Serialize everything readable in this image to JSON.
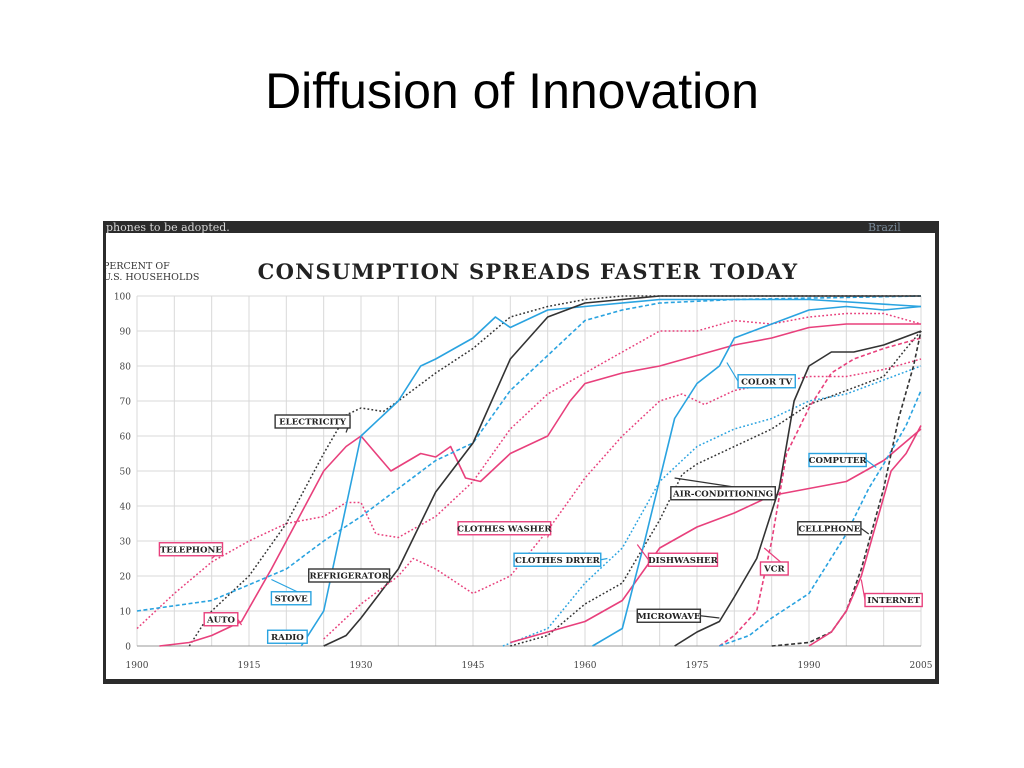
{
  "slide": {
    "title": "Diffusion of Innovation"
  },
  "crop": {
    "text_left": "phones to be adopted.",
    "text_right": "Brazil"
  },
  "chart_data": {
    "type": "line",
    "title": "CONSUMPTION SPREADS FASTER TODAY",
    "ylabel": "PERCENT OF U.S. HOUSEHOLDS",
    "ylabel_lines": [
      "PERCENT OF",
      "U.S. HOUSEHOLDS"
    ],
    "xlabel": "",
    "xlim": [
      1900,
      2005
    ],
    "ylim": [
      0,
      100
    ],
    "x_ticks": [
      1900,
      1915,
      1930,
      1945,
      1960,
      1975,
      1990,
      2005
    ],
    "y_ticks": [
      0,
      10,
      20,
      30,
      40,
      50,
      60,
      70,
      80,
      90,
      100
    ],
    "grid": true,
    "series": [
      {
        "name": "TELEPHONE",
        "color": "#e8407c",
        "style": "dotted",
        "points": [
          [
            1900,
            5
          ],
          [
            1905,
            15
          ],
          [
            1910,
            24
          ],
          [
            1915,
            30
          ],
          [
            1920,
            35
          ],
          [
            1925,
            37
          ],
          [
            1928,
            41
          ],
          [
            1930,
            41
          ],
          [
            1932,
            32
          ],
          [
            1935,
            31
          ],
          [
            1940,
            37
          ],
          [
            1945,
            47
          ],
          [
            1950,
            62
          ],
          [
            1955,
            72
          ],
          [
            1960,
            78
          ],
          [
            1965,
            84
          ],
          [
            1970,
            90
          ],
          [
            1975,
            90
          ],
          [
            1980,
            93
          ],
          [
            1985,
            92
          ],
          [
            1990,
            94
          ],
          [
            1995,
            95
          ],
          [
            2000,
            95
          ],
          [
            2005,
            92
          ]
        ]
      },
      {
        "name": "ELECTRICITY",
        "color": "#333333",
        "style": "dotted",
        "points": [
          [
            1907,
            0
          ],
          [
            1910,
            10
          ],
          [
            1915,
            20
          ],
          [
            1920,
            35
          ],
          [
            1925,
            55
          ],
          [
            1928,
            66
          ],
          [
            1930,
            68
          ],
          [
            1933,
            67
          ],
          [
            1935,
            70
          ],
          [
            1940,
            78
          ],
          [
            1945,
            85
          ],
          [
            1950,
            94
          ],
          [
            1955,
            97
          ],
          [
            1960,
            99
          ],
          [
            1965,
            100
          ],
          [
            1970,
            100
          ],
          [
            2005,
            100
          ]
        ]
      },
      {
        "name": "AUTO",
        "color": "#e8407c",
        "style": "solid",
        "points": [
          [
            1903,
            0
          ],
          [
            1907,
            1
          ],
          [
            1910,
            3
          ],
          [
            1914,
            7
          ],
          [
            1918,
            22
          ],
          [
            1922,
            38
          ],
          [
            1925,
            50
          ],
          [
            1928,
            57
          ],
          [
            1930,
            60
          ],
          [
            1932,
            55
          ],
          [
            1934,
            50
          ],
          [
            1938,
            55
          ],
          [
            1940,
            54
          ],
          [
            1942,
            57
          ],
          [
            1944,
            48
          ],
          [
            1946,
            47
          ],
          [
            1950,
            55
          ],
          [
            1955,
            60
          ],
          [
            1958,
            70
          ],
          [
            1960,
            75
          ],
          [
            1965,
            78
          ],
          [
            1970,
            80
          ],
          [
            1975,
            83
          ],
          [
            1980,
            86
          ],
          [
            1985,
            88
          ],
          [
            1990,
            91
          ],
          [
            1995,
            92
          ],
          [
            2005,
            92
          ]
        ]
      },
      {
        "name": "STOVE",
        "color": "#2aa3e0",
        "style": "dashed",
        "points": [
          [
            1900,
            10
          ],
          [
            1910,
            13
          ],
          [
            1920,
            22
          ],
          [
            1925,
            30
          ],
          [
            1930,
            37
          ],
          [
            1935,
            45
          ],
          [
            1940,
            53
          ],
          [
            1945,
            58
          ],
          [
            1950,
            73
          ],
          [
            1955,
            83
          ],
          [
            1960,
            93
          ],
          [
            1965,
            96
          ],
          [
            1970,
            98
          ],
          [
            1980,
            99
          ],
          [
            2005,
            100
          ]
        ]
      },
      {
        "name": "RADIO",
        "color": "#2aa3e0",
        "style": "solid",
        "points": [
          [
            1922,
            0
          ],
          [
            1925,
            10
          ],
          [
            1928,
            40
          ],
          [
            1930,
            60
          ],
          [
            1935,
            70
          ],
          [
            1938,
            80
          ],
          [
            1940,
            82
          ],
          [
            1945,
            88
          ],
          [
            1948,
            94
          ],
          [
            1950,
            91
          ],
          [
            1955,
            96
          ],
          [
            1960,
            97
          ],
          [
            1970,
            99
          ],
          [
            1980,
            99
          ],
          [
            1990,
            99
          ],
          [
            2005,
            97
          ]
        ]
      },
      {
        "name": "REFRIGERATOR",
        "color": "#333333",
        "style": "solid",
        "points": [
          [
            1925,
            0
          ],
          [
            1928,
            3
          ],
          [
            1930,
            8
          ],
          [
            1935,
            22
          ],
          [
            1940,
            44
          ],
          [
            1945,
            58
          ],
          [
            1950,
            82
          ],
          [
            1955,
            94
          ],
          [
            1960,
            98
          ],
          [
            1965,
            99
          ],
          [
            1970,
            100
          ],
          [
            2005,
            100
          ]
        ]
      },
      {
        "name": "CLOTHES WASHER",
        "color": "#e8407c",
        "style": "dotted",
        "points": [
          [
            1925,
            2
          ],
          [
            1930,
            12
          ],
          [
            1935,
            20
          ],
          [
            1937,
            25
          ],
          [
            1940,
            22
          ],
          [
            1945,
            15
          ],
          [
            1950,
            20
          ],
          [
            1955,
            33
          ],
          [
            1960,
            48
          ],
          [
            1965,
            60
          ],
          [
            1970,
            70
          ],
          [
            1973,
            72
          ],
          [
            1976,
            69
          ],
          [
            1980,
            73
          ],
          [
            1985,
            75
          ],
          [
            1990,
            77
          ],
          [
            1995,
            77
          ],
          [
            2000,
            79
          ],
          [
            2005,
            82
          ]
        ]
      },
      {
        "name": "CLOTHES DRYER",
        "color": "#2aa3e0",
        "style": "dotted",
        "points": [
          [
            1949,
            0
          ],
          [
            1955,
            5
          ],
          [
            1960,
            18
          ],
          [
            1965,
            28
          ],
          [
            1970,
            47
          ],
          [
            1975,
            57
          ],
          [
            1980,
            62
          ],
          [
            1985,
            65
          ],
          [
            1990,
            70
          ],
          [
            1995,
            72
          ],
          [
            2000,
            76
          ],
          [
            2005,
            80
          ]
        ]
      },
      {
        "name": "AIR-CONDITIONING",
        "color": "#333333",
        "style": "dotted",
        "points": [
          [
            1950,
            0
          ],
          [
            1955,
            3
          ],
          [
            1960,
            12
          ],
          [
            1965,
            18
          ],
          [
            1970,
            36
          ],
          [
            1973,
            49
          ],
          [
            1975,
            52
          ],
          [
            1980,
            57
          ],
          [
            1985,
            62
          ],
          [
            1990,
            69
          ],
          [
            1995,
            73
          ],
          [
            2000,
            77
          ],
          [
            2003,
            85
          ],
          [
            2005,
            90
          ]
        ]
      },
      {
        "name": "DISHWASHER",
        "color": "#e8407c",
        "style": "solid",
        "points": [
          [
            1950,
            1
          ],
          [
            1955,
            4
          ],
          [
            1960,
            7
          ],
          [
            1965,
            13
          ],
          [
            1970,
            28
          ],
          [
            1975,
            34
          ],
          [
            1980,
            38
          ],
          [
            1985,
            43
          ],
          [
            1990,
            45
          ],
          [
            1995,
            47
          ],
          [
            2000,
            53
          ],
          [
            2005,
            62
          ]
        ]
      },
      {
        "name": "COLOR TV",
        "color": "#2aa3e0",
        "style": "solid",
        "points": [
          [
            1961,
            0
          ],
          [
            1965,
            5
          ],
          [
            1968,
            30
          ],
          [
            1972,
            65
          ],
          [
            1975,
            75
          ],
          [
            1978,
            80
          ],
          [
            1980,
            88
          ],
          [
            1985,
            92
          ],
          [
            1990,
            96
          ],
          [
            1995,
            97
          ],
          [
            2000,
            96
          ],
          [
            2005,
            97
          ]
        ]
      },
      {
        "name": "MICROWAVE",
        "color": "#333333",
        "style": "solid",
        "points": [
          [
            1972,
            0
          ],
          [
            1975,
            4
          ],
          [
            1978,
            7
          ],
          [
            1980,
            14
          ],
          [
            1983,
            25
          ],
          [
            1986,
            45
          ],
          [
            1988,
            70
          ],
          [
            1990,
            80
          ],
          [
            1993,
            84
          ],
          [
            1996,
            84
          ],
          [
            2000,
            86
          ],
          [
            2005,
            90
          ]
        ]
      },
      {
        "name": "VCR",
        "color": "#e8407c",
        "style": "dashed",
        "points": [
          [
            1978,
            0
          ],
          [
            1980,
            3
          ],
          [
            1983,
            10
          ],
          [
            1985,
            30
          ],
          [
            1987,
            55
          ],
          [
            1990,
            68
          ],
          [
            1993,
            78
          ],
          [
            1996,
            82
          ],
          [
            2000,
            85
          ],
          [
            2005,
            88
          ]
        ]
      },
      {
        "name": "COMPUTER",
        "color": "#2aa3e0",
        "style": "dashed",
        "points": [
          [
            1978,
            0
          ],
          [
            1982,
            3
          ],
          [
            1985,
            8
          ],
          [
            1990,
            15
          ],
          [
            1995,
            32
          ],
          [
            1998,
            45
          ],
          [
            2000,
            52
          ],
          [
            2003,
            63
          ],
          [
            2005,
            73
          ]
        ]
      },
      {
        "name": "CELLPHONE",
        "color": "#333333",
        "style": "dashed",
        "points": [
          [
            1985,
            0
          ],
          [
            1990,
            1
          ],
          [
            1993,
            4
          ],
          [
            1995,
            10
          ],
          [
            1997,
            22
          ],
          [
            2000,
            45
          ],
          [
            2002,
            65
          ],
          [
            2004,
            80
          ],
          [
            2005,
            90
          ]
        ]
      },
      {
        "name": "INTERNET",
        "color": "#e8407c",
        "style": "solid",
        "points": [
          [
            1990,
            0
          ],
          [
            1993,
            4
          ],
          [
            1995,
            10
          ],
          [
            1997,
            20
          ],
          [
            1999,
            35
          ],
          [
            2001,
            50
          ],
          [
            2003,
            55
          ],
          [
            2005,
            63
          ]
        ]
      }
    ],
    "annotations": [
      {
        "text": "TELEPHONE",
        "color": "#e8407c",
        "label_x": 1903,
        "label_y": 29.5,
        "point": [
          1910,
          25
        ]
      },
      {
        "text": "ELECTRICITY",
        "color": "#333333",
        "label_x": 1918.5,
        "label_y": 66,
        "point": [
          1928,
          61
        ]
      },
      {
        "text": "AUTO",
        "color": "#e8407c",
        "label_x": 1909,
        "label_y": 9.5,
        "point": [
          1914,
          6
        ]
      },
      {
        "text": "STOVE",
        "color": "#2aa3e0",
        "label_x": 1918,
        "label_y": 15.5,
        "point": [
          1918,
          19
        ]
      },
      {
        "text": "RADIO",
        "color": "#2aa3e0",
        "label_x": 1917.5,
        "label_y": 4.5,
        "point": [
          1922,
          2
        ]
      },
      {
        "text": "REFRIGERATOR",
        "color": "#333333",
        "label_x": 1923,
        "label_y": 22,
        "point": [
          1934,
          20
        ]
      },
      {
        "text": "CLOTHES WASHER",
        "color": "#e8407c",
        "label_x": 1943,
        "label_y": 35.5,
        "point": [
          1955,
          31
        ]
      },
      {
        "text": "CLOTHES DRYER",
        "color": "#2aa3e0",
        "label_x": 1950.5,
        "label_y": 26.5,
        "point": [
          1963,
          25
        ]
      },
      {
        "text": "AIR-CONDITIONING",
        "color": "#333333",
        "label_x": 1971.5,
        "label_y": 45.5,
        "point": [
          1972,
          48
        ]
      },
      {
        "text": "DISHWASHER",
        "color": "#e8407c",
        "label_x": 1968.5,
        "label_y": 26.5,
        "point": [
          1967,
          29
        ]
      },
      {
        "text": "COLOR TV",
        "color": "#2aa3e0",
        "label_x": 1980.5,
        "label_y": 77.5,
        "point": [
          1979,
          81
        ]
      },
      {
        "text": "MICROWAVE",
        "color": "#333333",
        "label_x": 1967,
        "label_y": 10.5,
        "point": [
          1978,
          8
        ]
      },
      {
        "text": "VCR",
        "color": "#e8407c",
        "label_x": 1983.5,
        "label_y": 24,
        "point": [
          1984,
          28
        ]
      },
      {
        "text": "COMPUTER",
        "color": "#2aa3e0",
        "label_x": 1990,
        "label_y": 55,
        "point": [
          1999,
          51
        ]
      },
      {
        "text": "CELLPHONE",
        "color": "#333333",
        "label_x": 1988.5,
        "label_y": 35.5,
        "point": [
          1998,
          32
        ]
      },
      {
        "text": "INTERNET",
        "color": "#e8407c",
        "label_x": 1997.5,
        "label_y": 15,
        "point": [
          1997,
          19
        ]
      }
    ]
  }
}
